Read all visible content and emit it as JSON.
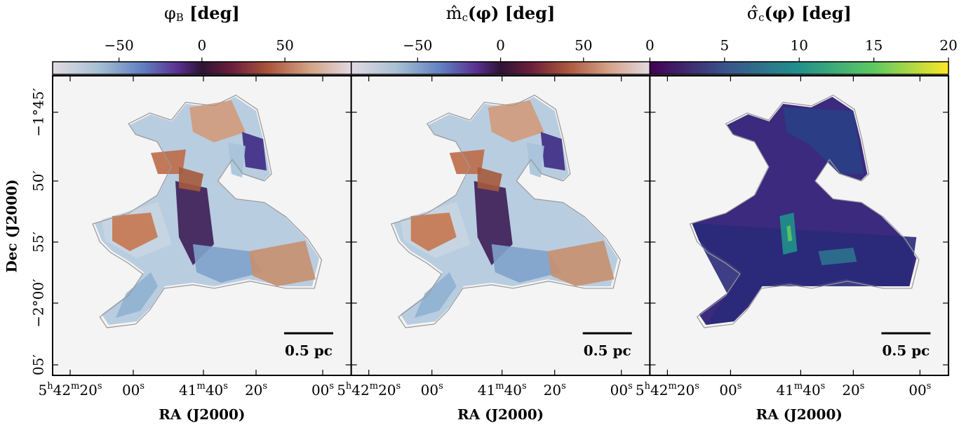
{
  "panels": [
    {
      "title_parts": [
        "φ",
        "B",
        " [deg]"
      ],
      "colorbar": {
        "lim": [
          -90,
          90
        ],
        "ticks": [
          {
            "value": -50,
            "label": "−50"
          },
          0,
          50
        ],
        "cmap": "twilight"
      },
      "scale_bar": "0.5 pc"
    },
    {
      "title_parts": [
        "m̂",
        "c",
        "(φ) [deg]"
      ],
      "colorbar": {
        "lim": [
          -90,
          90
        ],
        "ticks": [
          {
            "value": -50,
            "label": "−50"
          },
          0,
          50
        ],
        "cmap": "twilight"
      },
      "scale_bar": "0.5 pc"
    },
    {
      "title_parts": [
        "σ̂",
        "c",
        "(φ) [deg]"
      ],
      "colorbar": {
        "lim": [
          0,
          20
        ],
        "ticks": [
          0,
          5,
          10,
          15,
          20
        ],
        "cmap": "viridis"
      },
      "scale_bar": "0.5 pc"
    }
  ],
  "y_axis": {
    "label": "Dec (J2000)",
    "ticks": [
      "−1°45′",
      "50′",
      "55′",
      "−2°00′",
      "05′"
    ]
  },
  "x_axis": {
    "label": "RA (J2000)",
    "ticks": [
      [
        "5",
        "h",
        "42",
        "m",
        "20",
        "s"
      ],
      [
        "00",
        "s"
      ],
      [
        "41",
        "m",
        "40",
        "s"
      ],
      [
        "20",
        "s"
      ],
      [
        "00",
        "s"
      ]
    ]
  }
}
